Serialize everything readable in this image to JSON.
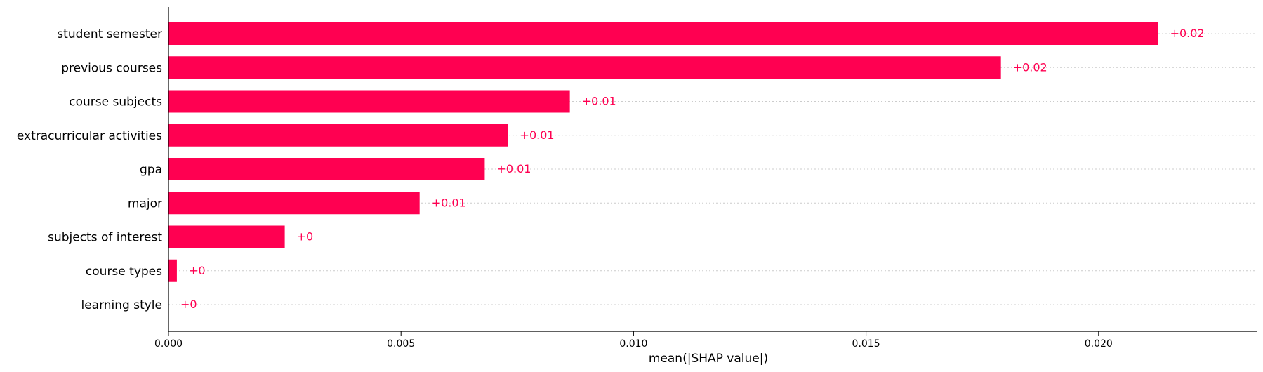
{
  "chart_data": {
    "type": "bar",
    "orientation": "horizontal",
    "categories": [
      "student semester",
      "previous courses",
      "course subjects",
      "extracurricular activities",
      "gpa",
      "major",
      "subjects of interest",
      "course types",
      "learning style"
    ],
    "values": [
      0.02128,
      0.0179,
      0.00863,
      0.0073,
      0.0068,
      0.0054,
      0.0025,
      0.00018,
      0.0
    ],
    "value_labels": [
      "+0.02",
      "+0.02",
      "+0.01",
      "+0.01",
      "+0.01",
      "+0.01",
      "+0",
      "+0",
      "+0"
    ],
    "xlabel": "mean(|SHAP value|)",
    "ylabel": "",
    "xlim": [
      0,
      0.0234
    ],
    "xticks": [
      0,
      0.005,
      0.01,
      0.015,
      0.02
    ],
    "xtick_labels": [
      "0.000",
      "0.005",
      "0.010",
      "0.015",
      "0.020"
    ],
    "grid": "dotted horizontal row guides",
    "legend": "none",
    "bar_color": "#ff0051"
  }
}
